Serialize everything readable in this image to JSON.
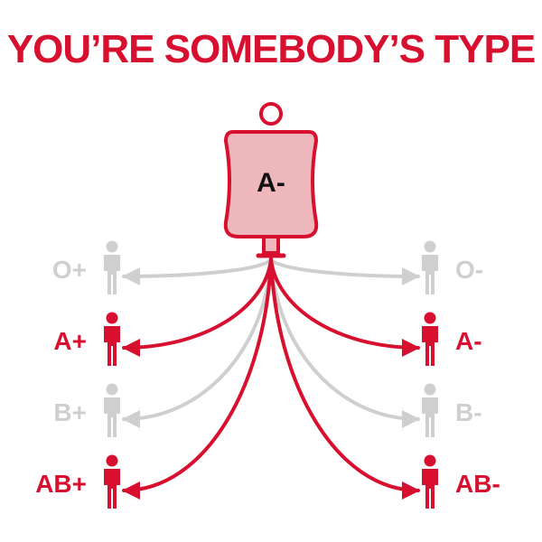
{
  "title": "YOU’RE SOMEBODY’S TYPE",
  "donor": {
    "label": "A-"
  },
  "colors": {
    "compatible": "#d7102f",
    "incompatible": "#cfcfcf",
    "bag_fill": "#edb7bc",
    "text_dark": "#111111"
  },
  "recipients": [
    {
      "id": "o-pos",
      "label": "O+",
      "side": "left",
      "compatible": false
    },
    {
      "id": "a-pos",
      "label": "A+",
      "side": "left",
      "compatible": true
    },
    {
      "id": "b-pos",
      "label": "B+",
      "side": "left",
      "compatible": false
    },
    {
      "id": "ab-pos",
      "label": "AB+",
      "side": "left",
      "compatible": true
    },
    {
      "id": "o-neg",
      "label": "O-",
      "side": "right",
      "compatible": false
    },
    {
      "id": "a-neg",
      "label": "A-",
      "side": "right",
      "compatible": true
    },
    {
      "id": "b-neg",
      "label": "B-",
      "side": "right",
      "compatible": false
    },
    {
      "id": "ab-neg",
      "label": "AB-",
      "side": "right",
      "compatible": true
    }
  ]
}
